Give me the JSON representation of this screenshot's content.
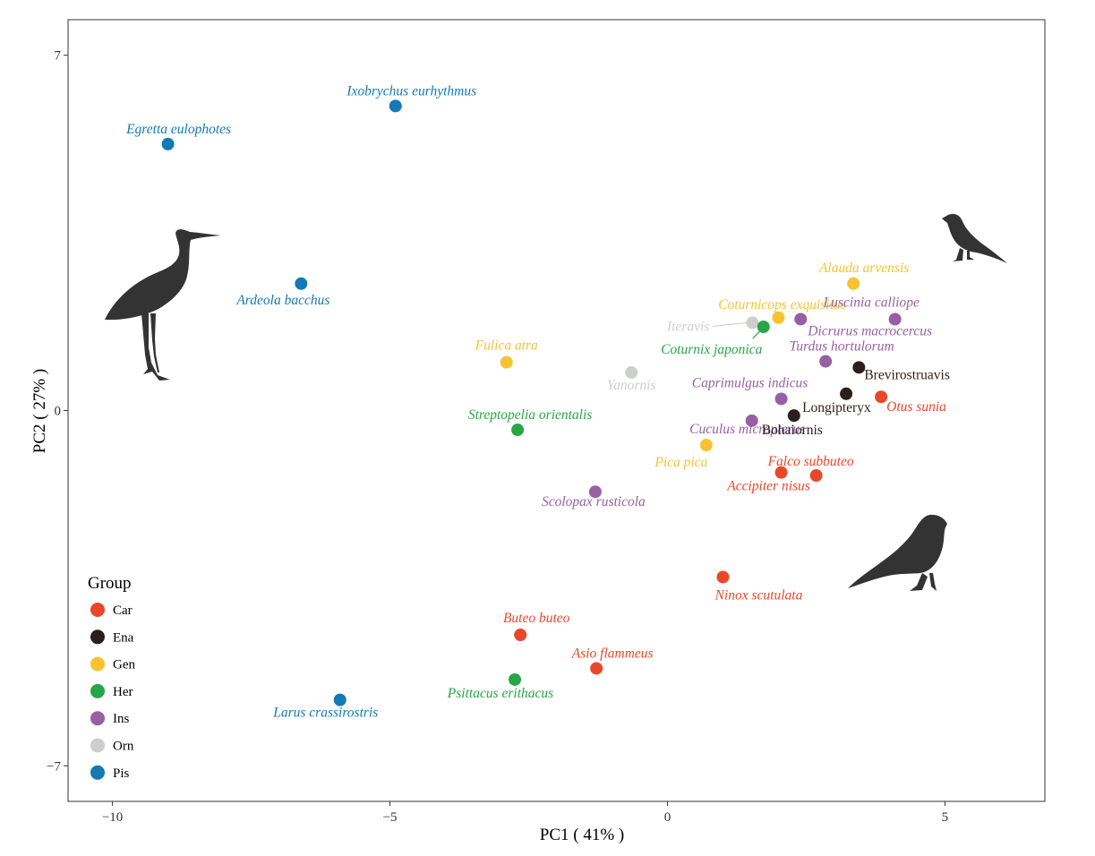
{
  "chart_data": {
    "type": "scatter",
    "title": "",
    "xlabel": "PC1 ( 41% )",
    "ylabel": "PC2 ( 27% )",
    "xlim": [
      -10.8,
      6.8
    ],
    "ylim": [
      -7.7,
      7.7
    ],
    "xticks": [
      -10,
      -5,
      0,
      5
    ],
    "xtick_labels": [
      "−10",
      "−5",
      "0",
      "5"
    ],
    "yticks": [
      -7,
      0,
      7
    ],
    "ytick_labels": [
      "−7",
      "0",
      "7"
    ],
    "grid": false,
    "legend": {
      "title": "Group",
      "position": "bottom-left",
      "entries": [
        {
          "name": "Car",
          "color": "#E8472A"
        },
        {
          "name": "Ena",
          "color": "#2A1F1D"
        },
        {
          "name": "Gen",
          "color": "#F8C230"
        },
        {
          "name": "Her",
          "color": "#26A645"
        },
        {
          "name": "Ins",
          "color": "#9660A3"
        },
        {
          "name": "Orn",
          "color": "#CDCFCC"
        },
        {
          "name": "Pis",
          "color": "#1479B5"
        }
      ]
    },
    "points": [
      {
        "label": "Ixobrychus eurhythmus",
        "group": "Pis",
        "x": -4.9,
        "y": 6.0,
        "italic": true
      },
      {
        "label": "Egretta eulophotes",
        "group": "Pis",
        "x": -9.0,
        "y": 5.25,
        "italic": true
      },
      {
        "label": "Ardeola bacchus",
        "group": "Pis",
        "x": -6.6,
        "y": 2.5,
        "italic": true
      },
      {
        "label": "Larus crassirostris",
        "group": "Pis",
        "x": -5.9,
        "y": -5.7,
        "italic": true
      },
      {
        "label": "Alauda arvensis",
        "group": "Gen",
        "x": 3.35,
        "y": 2.5,
        "italic": true
      },
      {
        "label": "Coturnicops exquisitus",
        "group": "Gen",
        "x": 2.0,
        "y": 1.83,
        "italic": true
      },
      {
        "label": "Fulica atra",
        "group": "Gen",
        "x": -2.9,
        "y": 0.95,
        "italic": true
      },
      {
        "label": "Pica pica",
        "group": "Gen",
        "x": 0.7,
        "y": -0.68,
        "italic": true
      },
      {
        "label": "Luscinia calliope",
        "group": "Ins",
        "x": 4.1,
        "y": 1.8,
        "italic": true
      },
      {
        "label": "Dicrurus macrocercus",
        "group": "Ins",
        "x": 2.4,
        "y": 1.8,
        "italic": true
      },
      {
        "label": "Turdus hortulorum",
        "group": "Ins",
        "x": 2.85,
        "y": 0.97,
        "italic": true
      },
      {
        "label": "Caprimulgus indicus",
        "group": "Ins",
        "x": 2.05,
        "y": 0.23,
        "italic": true
      },
      {
        "label": "Cuculus micropterus",
        "group": "Ins",
        "x": 1.52,
        "y": -0.2,
        "italic": true
      },
      {
        "label": "Scolopax rusticola",
        "group": "Ins",
        "x": -1.3,
        "y": -1.6,
        "italic": true
      },
      {
        "label": "Iteravis",
        "group": "Orn",
        "x": 1.53,
        "y": 1.73,
        "italic": true
      },
      {
        "label": "Yanornis",
        "group": "Orn",
        "x": -0.65,
        "y": 0.75,
        "italic": true
      },
      {
        "label": "Coturnix japonica",
        "group": "Her",
        "x": 1.73,
        "y": 1.65,
        "italic": true
      },
      {
        "label": "Streptopelia orientalis",
        "group": "Her",
        "x": -2.7,
        "y": -0.38,
        "italic": true
      },
      {
        "label": "Psittacus erithacus",
        "group": "Her",
        "x": -2.75,
        "y": -5.3,
        "italic": true
      },
      {
        "label": "Brevirostruavis",
        "group": "Ena",
        "x": 3.45,
        "y": 0.85,
        "italic": false
      },
      {
        "label": "Longipteryx",
        "group": "Ena",
        "x": 3.22,
        "y": 0.33,
        "italic": false
      },
      {
        "label": "Bohaiornis",
        "group": "Ena",
        "x": 2.28,
        "y": -0.1,
        "italic": false
      },
      {
        "label": "Otus sunia",
        "group": "Car",
        "x": 3.85,
        "y": 0.27,
        "italic": true
      },
      {
        "label": "Accipiter nisus",
        "group": "Car",
        "x": 2.05,
        "y": -1.22,
        "italic": true
      },
      {
        "label": "Falco subbuteo",
        "group": "Car",
        "x": 2.68,
        "y": -1.28,
        "italic": true
      },
      {
        "label": "Ninox scutulata",
        "group": "Car",
        "x": 1.0,
        "y": -3.28,
        "italic": true
      },
      {
        "label": "Buteo buteo",
        "group": "Car",
        "x": -2.65,
        "y": -4.42,
        "italic": true
      },
      {
        "label": "Asio flammeus",
        "group": "Car",
        "x": -1.28,
        "y": -5.08,
        "italic": true
      }
    ],
    "silhouettes": [
      "heron-icon",
      "songbird-icon",
      "falcon-icon"
    ]
  }
}
